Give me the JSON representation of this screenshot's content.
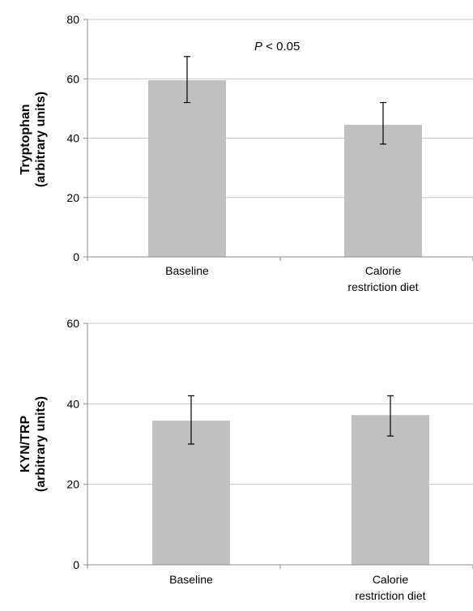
{
  "chart_data": [
    {
      "type": "bar",
      "categories": [
        "Baseline",
        "Calorie restriction diet"
      ],
      "category_lines": [
        [
          "Baseline"
        ],
        [
          "Calorie",
          "restriction diet"
        ]
      ],
      "values": [
        59.5,
        44.5
      ],
      "error_low": [
        52.0,
        38.0
      ],
      "error_high": [
        67.5,
        52.0
      ],
      "ylabel_lines": [
        "Tryptophan",
        "(arbitrary units)"
      ],
      "xlabel": "",
      "ylim": [
        0,
        80
      ],
      "yticks": [
        0,
        20,
        40,
        60,
        80
      ],
      "annotation_italic": "P",
      "annotation_text": " < 0.05",
      "grid": true,
      "bar_color": "#c0c0c0",
      "grid_color": "#c8c8c8",
      "axis_color": "#8c8c8c"
    },
    {
      "type": "bar",
      "categories": [
        "Baseline",
        "Calorie restriction diet"
      ],
      "category_lines": [
        [
          "Baseline"
        ],
        [
          "Calorie",
          "restriction diet"
        ]
      ],
      "values": [
        35.8,
        37.2
      ],
      "error_low": [
        30.0,
        32.0
      ],
      "error_high": [
        42.0,
        42.0
      ],
      "ylabel_lines": [
        "KYN/TRP",
        "(arbitrary units)"
      ],
      "xlabel": "",
      "ylim": [
        0,
        60
      ],
      "yticks": [
        0,
        20,
        40,
        60
      ],
      "grid": true,
      "bar_color": "#c0c0c0",
      "grid_color": "#c8c8c8",
      "axis_color": "#8c8c8c"
    }
  ]
}
